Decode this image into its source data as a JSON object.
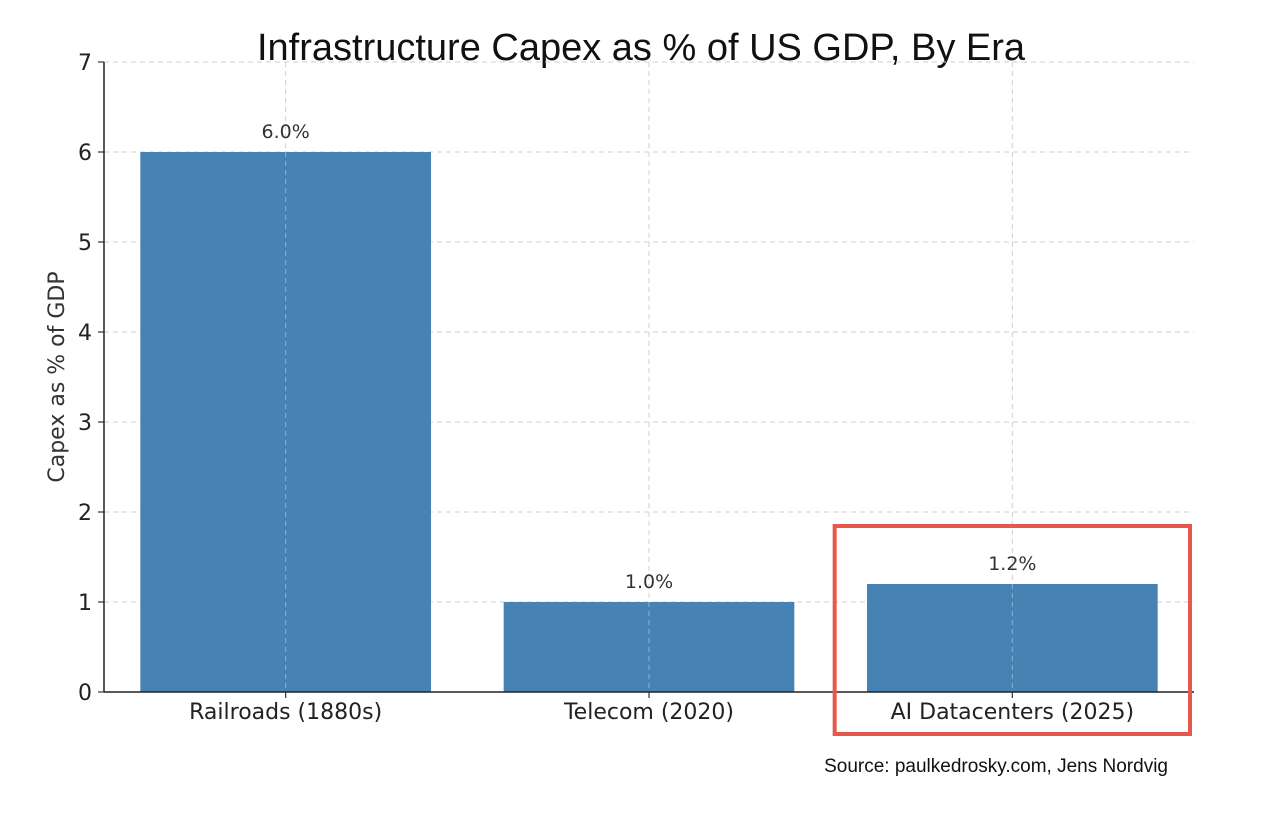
{
  "chart_data": {
    "type": "bar",
    "title": "Infrastructure Capex as % of US GDP, By Era",
    "ylabel": "Capex as % of GDP",
    "xlabel": "",
    "ylim": [
      0,
      7
    ],
    "yticks": [
      "0",
      "1",
      "2",
      "3",
      "4",
      "5",
      "6",
      "7"
    ],
    "grid": true,
    "categories": [
      "Railroads (1880s)",
      "Telecom (2020)",
      "AI Datacenters (2025)"
    ],
    "values": [
      6.0,
      1.0,
      1.2
    ],
    "data_labels": [
      "6.0%",
      "1.0%",
      "1.2%"
    ],
    "bar_color": "#4682b4",
    "highlight": {
      "category_index": 2,
      "color": "#e8574b"
    },
    "source": "Source: paulkedrosky.com, Jens Nordvig"
  }
}
